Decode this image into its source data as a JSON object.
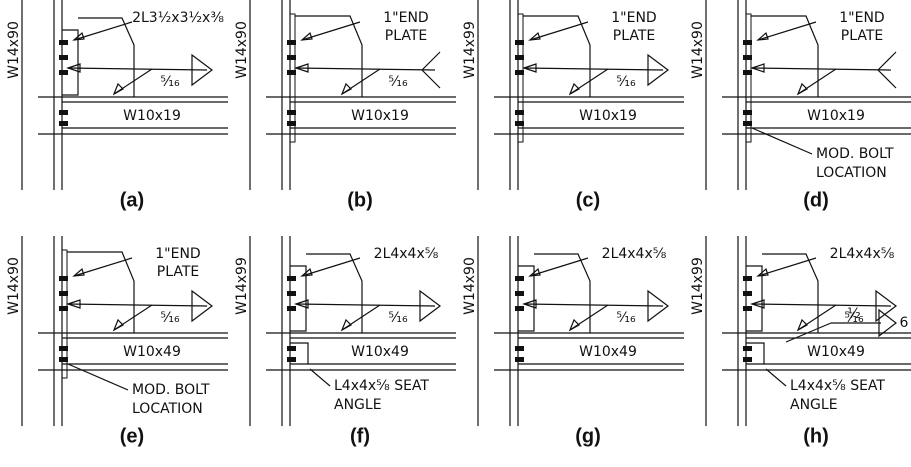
{
  "panels": [
    {
      "column": "W14x90",
      "beam": "W10x19",
      "callout": [
        "2L3½x3½x⅜"
      ],
      "weld": "⁵⁄₁₆",
      "caption": "(a)"
    },
    {
      "column": "W14x90",
      "beam": "W10x19",
      "callout": [
        "1\"END",
        "PLATE"
      ],
      "weld": "⁵⁄₁₆",
      "caption": "(b)"
    },
    {
      "column": "W14x99",
      "beam": "W10x19",
      "callout": [
        "1\"END",
        "PLATE"
      ],
      "weld": "⁵⁄₁₆",
      "caption": "(c)"
    },
    {
      "column": "W14x90",
      "beam": "W10x19",
      "callout": [
        "1\"END",
        "PLATE"
      ],
      "note": [
        "MOD. BOLT",
        "LOCATION"
      ],
      "caption": "(d)"
    },
    {
      "column": "W14x90",
      "beam": "W10x49",
      "callout": [
        "1\"END",
        "PLATE"
      ],
      "weld": "⁵⁄₁₆",
      "note": [
        "MOD. BOLT",
        "LOCATION"
      ],
      "caption": "(e)"
    },
    {
      "column": "W14x99",
      "beam": "W10x49",
      "callout": [
        "2L4x4x⅝"
      ],
      "weld": "⁵⁄₁₆",
      "seat": [
        "L4x4x⅝ SEAT",
        "ANGLE"
      ],
      "caption": "(f)"
    },
    {
      "column": "W14x90",
      "beam": "W10x49",
      "callout": [
        "2L4x4x⅝"
      ],
      "weld": "⁵⁄₁₆",
      "caption": "(g)"
    },
    {
      "column": "W14x99",
      "beam": "W10x49",
      "callout": [
        "2L4x4x⅝"
      ],
      "weld": "⁵⁄₁₆",
      "weld2": "½",
      "length": "6",
      "seat": [
        "L4x4x⅝ SEAT",
        "ANGLE"
      ],
      "caption": "(h)"
    }
  ]
}
